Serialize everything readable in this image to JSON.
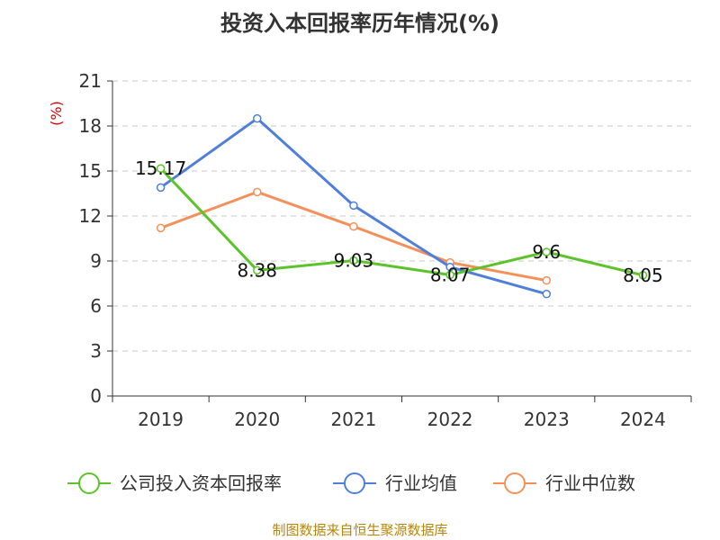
{
  "chart_data": {
    "type": "line",
    "title": "投资入本回报率历年情况(%)",
    "ylabel": "(%)",
    "xlabel": "",
    "categories": [
      "2019",
      "2020",
      "2021",
      "2022",
      "2023",
      "2024"
    ],
    "ylim": [
      0,
      21
    ],
    "yticks": [
      0,
      3,
      6,
      9,
      12,
      15,
      18,
      21
    ],
    "grid": "horizontal dashed",
    "legend_position": "bottom",
    "series": [
      {
        "name": "公司投入资本回报率",
        "color": "#5cc42a",
        "values": [
          15.17,
          8.38,
          9.03,
          8.07,
          9.6,
          8.05
        ],
        "labels": [
          "15.17",
          "8.38",
          "9.03",
          "8.07",
          "9.6",
          "8.05"
        ]
      },
      {
        "name": "行业均值",
        "color": "#4f7fdb",
        "values": [
          13.9,
          18.5,
          12.7,
          8.6,
          6.8,
          null
        ]
      },
      {
        "name": "行业中位数",
        "color": "#f5905a",
        "values": [
          11.2,
          13.6,
          11.3,
          8.9,
          7.7,
          null
        ]
      }
    ]
  },
  "source": "制图数据来自恒生聚源数据库"
}
